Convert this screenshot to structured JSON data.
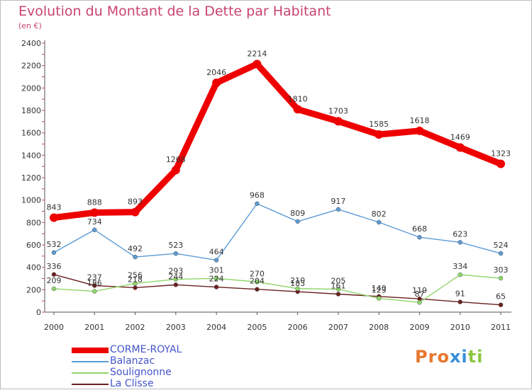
{
  "header": {
    "title": "Evolution du Montant de la Dette par Habitant",
    "unit": "(en €)"
  },
  "colors": {
    "title": "#c8436f",
    "axis": "#555555",
    "grid": "#e8e8e8",
    "legend_text": "#4455cc"
  },
  "logo": {
    "text": "Proxiti",
    "letter_colors": [
      "#e8772e",
      "#e8772e",
      "#e8772e",
      "#3a8fd8",
      "#3a8fd8",
      "#8cc63f",
      "#8cc63f"
    ]
  },
  "chart_data": {
    "type": "line",
    "title": "Evolution du Montant de la Dette par Habitant",
    "ylabel": "(en €)",
    "x": [
      "2000",
      "2001",
      "2002",
      "2003",
      "2004",
      "2005",
      "2006",
      "2007",
      "2008",
      "2009",
      "2010",
      "2011"
    ],
    "ylim": [
      0,
      2400
    ],
    "yticks": [
      "0",
      "200",
      "400",
      "600",
      "800",
      "1000",
      "1200",
      "1400",
      "1600",
      "1800",
      "2000",
      "2200",
      "2400"
    ],
    "grid": false,
    "legend_position": "bottom-left",
    "series": [
      {
        "name": "CORME-ROYAL",
        "color": "#ee0000",
        "values": [
          843,
          888,
          893,
          1268,
          2046,
          2214,
          1810,
          1703,
          1585,
          1618,
          1469,
          1323
        ],
        "labels": [
          "843",
          "888",
          "893",
          "1268",
          "2046",
          "2214",
          "1810",
          "1703",
          "1585",
          "1618",
          "1469",
          "1323"
        ]
      },
      {
        "name": "Balanzac",
        "color": "#5b9bd5",
        "values": [
          532,
          734,
          492,
          523,
          464,
          968,
          809,
          917,
          802,
          668,
          623,
          524
        ],
        "labels": [
          "532",
          "734",
          "492",
          "523",
          "464",
          "968",
          "809",
          "917",
          "802",
          "668",
          "623",
          "524"
        ]
      },
      {
        "name": "Soulignonne",
        "color": "#8fd66a",
        "values": [
          209,
          186,
          256,
          293,
          301,
          270,
          210,
          205,
          123,
          87,
          334,
          303
        ],
        "labels": [
          "209",
          "186",
          "256",
          "293",
          "301",
          "270",
          "210",
          "205",
          "123",
          "87",
          "334",
          "303"
        ]
      },
      {
        "name": "La Clisse",
        "color": "#6b1f1f",
        "values": [
          336,
          237,
          218,
          244,
          224,
          204,
          183,
          161,
          140,
          119,
          91,
          65
        ],
        "labels": [
          "336",
          "237",
          "218",
          "244",
          "224",
          "204",
          "183",
          "161",
          "140",
          "119",
          "91",
          "65"
        ]
      }
    ]
  }
}
